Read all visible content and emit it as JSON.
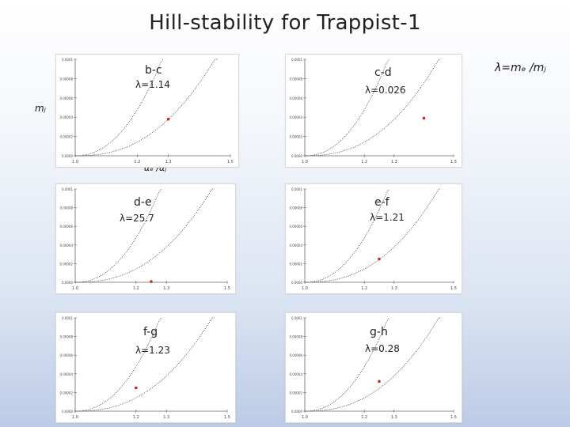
{
  "title": "Hill-stability for Trappist-1",
  "lambda_definition": "λ=mₑ /mⱼ",
  "y_axis_label": "mⱼ",
  "x_axis_label": "αₑ /αⱼ",
  "colors": {
    "curve": "#444444",
    "point": "#d42020",
    "axis": "#666666"
  },
  "chart_data": [
    {
      "type": "scatter",
      "pair": "b-c",
      "lambda": "λ=1.14",
      "xlim": [
        1.0,
        1.5
      ],
      "ylim": [
        0,
        0.0001
      ],
      "x_ticks": [
        "1.0",
        "1.2",
        "1.3",
        "1.5"
      ],
      "y_ticks": [
        "0.0000",
        "0.00002",
        "0.00004",
        "0.00006",
        "0.00008",
        "0.0001"
      ],
      "points": [
        {
          "x": 1.3,
          "y": 3.8e-05
        }
      ]
    },
    {
      "type": "scatter",
      "pair": "c-d",
      "lambda": "λ=0.026",
      "xlim": [
        1.0,
        1.5
      ],
      "ylim": [
        0,
        0.0001
      ],
      "x_ticks": [
        "1.0",
        "1.2",
        "1.3",
        "1.5"
      ],
      "y_ticks": [
        "0.0000",
        "0.00002",
        "0.00004",
        "0.00006",
        "0.00008",
        "0.0001"
      ],
      "points": [
        {
          "x": 1.4,
          "y": 3.9e-05
        }
      ]
    },
    {
      "type": "scatter",
      "pair": "d-e",
      "lambda": "λ=25.7",
      "xlim": [
        1.0,
        1.5
      ],
      "ylim": [
        0,
        0.0001
      ],
      "x_ticks": [
        "1.0",
        "1.2",
        "1.3",
        "1.5"
      ],
      "y_ticks": [
        "0.0000",
        "0.00002",
        "0.00004",
        "0.00006",
        "0.00008",
        "0.0001"
      ],
      "points": [
        {
          "x": 1.25,
          "y": 8e-07
        }
      ]
    },
    {
      "type": "scatter",
      "pair": "e-f",
      "lambda": "λ=1.21",
      "xlim": [
        1.0,
        1.5
      ],
      "ylim": [
        0,
        0.0001
      ],
      "x_ticks": [
        "1.0",
        "1.2",
        "1.3",
        "1.5"
      ],
      "y_ticks": [
        "0.0000",
        "0.00002",
        "0.00004",
        "0.00006",
        "0.00008",
        "0.0001"
      ],
      "points": [
        {
          "x": 1.25,
          "y": 2.5e-05
        }
      ]
    },
    {
      "type": "scatter",
      "pair": "f-g",
      "lambda": "λ=1.23",
      "xlim": [
        1.0,
        1.5
      ],
      "ylim": [
        0,
        0.0001
      ],
      "x_ticks": [
        "1.0",
        "1.2",
        "1.3",
        "1.5"
      ],
      "y_ticks": [
        "0.0000",
        "0.00002",
        "0.00004",
        "0.00006",
        "0.00008",
        "0.0001"
      ],
      "points": [
        {
          "x": 1.2,
          "y": 2.5e-05
        }
      ]
    },
    {
      "type": "scatter",
      "pair": "g-h",
      "lambda": "λ=0.28",
      "xlim": [
        1.0,
        1.5
      ],
      "ylim": [
        0,
        0.0001
      ],
      "x_ticks": [
        "1.0",
        "1.2",
        "1.3",
        "1.5"
      ],
      "y_ticks": [
        "0.0000",
        "0.00002",
        "0.00004",
        "0.00006",
        "0.00008",
        "0.0001"
      ],
      "points": [
        {
          "x": 1.25,
          "y": 3.2e-05
        }
      ]
    }
  ]
}
